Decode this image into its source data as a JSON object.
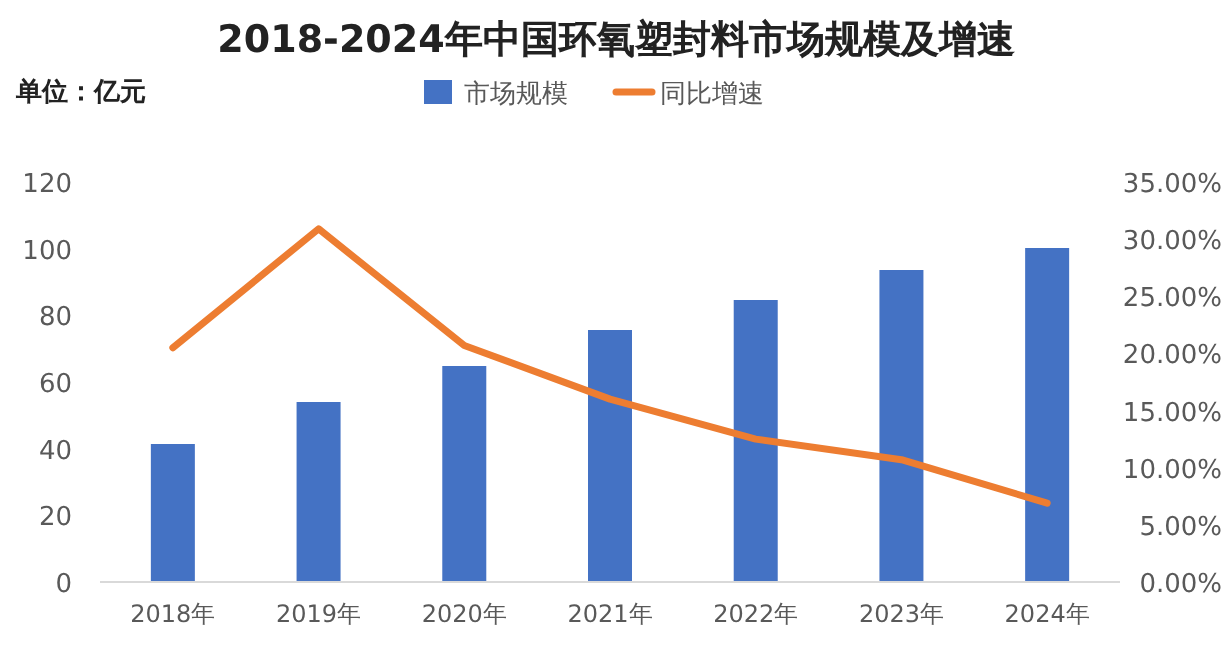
{
  "chart_data": {
    "type": "bar",
    "title": "2018-2024年中国环氧塑封料市场规模及增速",
    "annotations": [
      "单位：亿元"
    ],
    "categories": [
      "2018年",
      "2019年",
      "2020年",
      "2021年",
      "2022年",
      "2023年",
      "2024年"
    ],
    "series": [
      {
        "name": "市场规模",
        "color": "#4472c4",
        "values": [
          41.4,
          54,
          64.8,
          75.6,
          84.6,
          93.6,
          100.2
        ]
      },
      {
        "name": "同比增速",
        "type": "line",
        "axis": "y2",
        "color": "#ed7d31",
        "values": [
          20.5,
          30.9,
          20.7,
          16.0,
          12.5,
          10.7,
          6.9
        ]
      }
    ],
    "ylim": [
      0,
      120
    ],
    "yticks": [
      0,
      20,
      40,
      60,
      80,
      100,
      120
    ],
    "y2lim": [
      0,
      35
    ],
    "y2ticks": [
      {
        "value": 0,
        "label": "0.00%"
      },
      {
        "value": 5,
        "label": "5.00%"
      },
      {
        "value": 10,
        "label": "10.00%"
      },
      {
        "value": 15,
        "label": "15.00%"
      },
      {
        "value": 20,
        "label": "20.00%"
      },
      {
        "value": 25,
        "label": "25.00%"
      },
      {
        "value": 30,
        "label": "30.00%"
      },
      {
        "value": 35,
        "label": "35.00%"
      }
    ],
    "legend": "top"
  }
}
